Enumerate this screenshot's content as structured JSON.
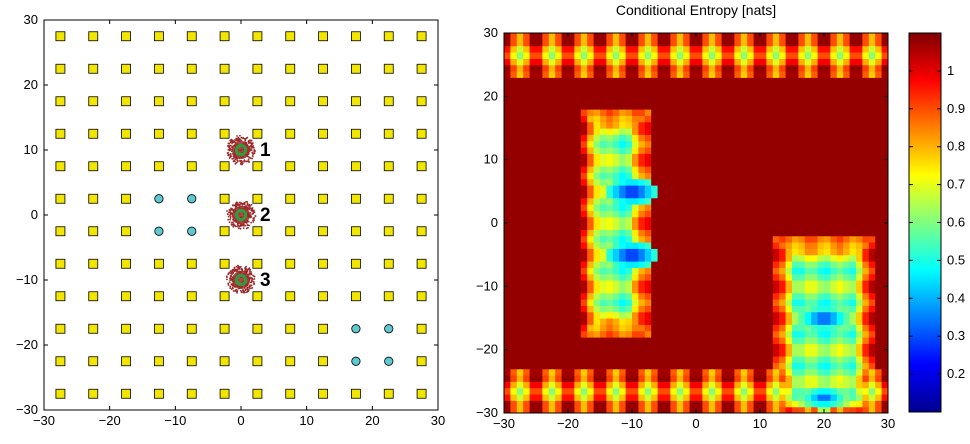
{
  "chart_data": [
    {
      "type": "scatter",
      "title": "",
      "xlabel": "",
      "ylabel": "",
      "xlim": [
        -30,
        30
      ],
      "ylim": [
        -30,
        30
      ],
      "x_ticks": [
        "−30",
        "−20",
        "−10",
        "0",
        "10",
        "20",
        "30"
      ],
      "y_ticks": [
        "30",
        "20",
        "10",
        "0",
        "−10",
        "−20",
        "−30"
      ],
      "grid": false,
      "series": [
        {
          "marker": "square",
          "color": "#f2e600",
          "grid_x": [
            -27.5,
            -22.5,
            -17.5,
            -12.5,
            -7.5,
            -2.5,
            2.5,
            7.5,
            12.5,
            17.5,
            22.5,
            27.5
          ],
          "grid_y": [
            27.5,
            22.5,
            17.5,
            12.5,
            7.5,
            2.5,
            -2.5,
            -7.5,
            -12.5,
            -17.5,
            -22.5,
            -27.5
          ],
          "omitted": [
            [
              -12.5,
              2.5
            ],
            [
              -7.5,
              2.5
            ],
            [
              -12.5,
              -2.5
            ],
            [
              -7.5,
              -2.5
            ],
            [
              17.5,
              -17.5
            ],
            [
              22.5,
              -17.5
            ],
            [
              17.5,
              -22.5
            ],
            [
              22.5,
              -22.5
            ]
          ]
        },
        {
          "marker": "circle",
          "color": "#5fc8d0",
          "points": [
            [
              -12.5,
              2.5
            ],
            [
              -7.5,
              2.5
            ],
            [
              -12.5,
              -2.5
            ],
            [
              -7.5,
              -2.5
            ],
            [
              17.5,
              -17.5
            ],
            [
              22.5,
              -17.5
            ],
            [
              17.5,
              -22.5
            ],
            [
              22.5,
              -22.5
            ]
          ]
        },
        {
          "marker": "agent",
          "color": "#2f9e3a",
          "particle_color": "#9b2a2a",
          "points": [
            [
              0,
              10,
              "1"
            ],
            [
              0,
              0,
              "2"
            ],
            [
              0,
              -10,
              "3"
            ]
          ]
        }
      ]
    },
    {
      "type": "heatmap",
      "title": "Conditional Entropy [nats]",
      "xlabel": "",
      "ylabel": "",
      "xlim": [
        -30,
        30
      ],
      "ylim": [
        -30,
        30
      ],
      "x_ticks": [
        "−30",
        "−20",
        "−10",
        "0",
        "10",
        "20",
        "30"
      ],
      "y_ticks": [
        "30",
        "20",
        "10",
        "0",
        "−10",
        "−20",
        "−30"
      ],
      "colorbar": {
        "range": [
          0.1,
          1.1
        ],
        "ticks": [
          "1",
          "0.9",
          "0.8",
          "0.7",
          "0.6",
          "0.5",
          "0.4",
          "0.3",
          "0.2"
        ]
      },
      "background_value": 1.08,
      "low_regions": [
        {
          "x": [
            -17.5,
            -7.5
          ],
          "y": [
            -17.5,
            17.5
          ],
          "value": 0.6
        },
        {
          "x": [
            12.5,
            27.5
          ],
          "y": [
            -30,
            -2.5
          ],
          "value": 0.6
        }
      ],
      "minima": [
        [
          -10,
          5,
          0.2
        ],
        [
          -10,
          -5,
          0.2
        ],
        [
          20,
          -15,
          0.25
        ],
        [
          20,
          -27.5,
          0.3
        ]
      ],
      "edge_bands": [
        {
          "y": [
            23,
            30
          ],
          "value": 0.8
        },
        {
          "y": [
            -30,
            -23
          ],
          "value": 0.8
        }
      ]
    }
  ]
}
